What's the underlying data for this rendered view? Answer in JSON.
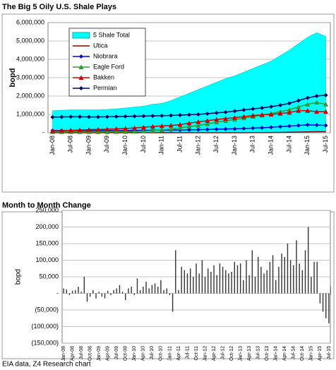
{
  "chart_data": [
    {
      "type": "line",
      "title": "The Big 5 Oily U.S. Shale Plays",
      "y_label": "bopd",
      "categories": [
        "Jan-08",
        null,
        "Jul-08",
        null,
        "Jan-09",
        null,
        "Jul-09",
        null,
        "Jan-10",
        null,
        "Jul-10",
        null,
        "Jan-11",
        null,
        "Jul-11",
        null,
        "Jan-12",
        null,
        "Jul-12",
        null,
        "Jan-13",
        null,
        "Jul-13",
        null,
        "Jan-14",
        null,
        "Jul-14",
        null,
        "Jan-15",
        null,
        "Jul-15"
      ],
      "ylim": [
        0,
        6000000
      ],
      "yticks": [
        {
          "value": 0,
          "label": "-"
        },
        {
          "value": 1000000,
          "label": "1,000,000"
        },
        {
          "value": 2000000,
          "label": "2,000,000"
        },
        {
          "value": 3000000,
          "label": "3,000,000"
        },
        {
          "value": 4000000,
          "label": "4,000,000"
        },
        {
          "value": 5000000,
          "label": "5,000,000"
        },
        {
          "value": 6000000,
          "label": "6,000,000"
        }
      ],
      "grid": true,
      "legend": "top-left",
      "series": [
        {
          "name": "5 Shale Total",
          "color": "#00ffff",
          "style": "area",
          "values": [
            1200000,
            1220000,
            1250000,
            1250000,
            1250000,
            1250000,
            1270000,
            1300000,
            1350000,
            1400000,
            1450000,
            1550000,
            1600000,
            1750000,
            1950000,
            2150000,
            2350000,
            2550000,
            2750000,
            2950000,
            3100000,
            3300000,
            3500000,
            3700000,
            3900000,
            4200000,
            4500000,
            4850000,
            5200000,
            5450000,
            5250000
          ]
        },
        {
          "name": "Utica",
          "color": "#8b0000",
          "style": "line",
          "values": [
            5000,
            5000,
            5000,
            5000,
            5000,
            5000,
            5000,
            5000,
            5000,
            5000,
            5000,
            5000,
            5000,
            5000,
            5000,
            5000,
            5000,
            5000,
            5000,
            5000,
            5000,
            5000,
            10000,
            10000,
            15000,
            20000,
            30000,
            40000,
            50000,
            60000,
            60000
          ]
        },
        {
          "name": "Niobrara",
          "color": "#0000cc",
          "style": "diamond",
          "values": [
            120000,
            120000,
            120000,
            120000,
            120000,
            120000,
            120000,
            120000,
            120000,
            125000,
            130000,
            135000,
            140000,
            145000,
            150000,
            160000,
            170000,
            180000,
            190000,
            200000,
            210000,
            230000,
            250000,
            270000,
            300000,
            330000,
            360000,
            400000,
            430000,
            420000,
            400000
          ]
        },
        {
          "name": "Eagle Ford",
          "color": "#339933",
          "style": "triangle",
          "values": [
            50000,
            50000,
            50000,
            50000,
            50000,
            50000,
            50000,
            55000,
            60000,
            70000,
            90000,
            120000,
            150000,
            200000,
            260000,
            330000,
            400000,
            480000,
            570000,
            650000,
            720000,
            800000,
            880000,
            950000,
            1050000,
            1150000,
            1250000,
            1400000,
            1550000,
            1650000,
            1550000
          ]
        },
        {
          "name": "Bakken",
          "color": "#cc0000",
          "style": "triangle",
          "values": [
            100000,
            110000,
            130000,
            150000,
            170000,
            180000,
            190000,
            210000,
            230000,
            260000,
            300000,
            340000,
            370000,
            400000,
            440000,
            520000,
            590000,
            660000,
            720000,
            770000,
            820000,
            880000,
            940000,
            980000,
            1000000,
            1050000,
            1100000,
            1200000,
            1200000,
            1150000,
            1150000
          ]
        },
        {
          "name": "Permian",
          "color": "#000066",
          "style": "diamond",
          "values": [
            850000,
            860000,
            870000,
            870000,
            860000,
            860000,
            870000,
            880000,
            890000,
            900000,
            910000,
            920000,
            930000,
            940000,
            960000,
            980000,
            1000000,
            1040000,
            1080000,
            1120000,
            1180000,
            1240000,
            1300000,
            1350000,
            1420000,
            1500000,
            1600000,
            1750000,
            1900000,
            2000000,
            2050000
          ]
        }
      ]
    },
    {
      "type": "bar",
      "title": "Month to Month Change",
      "y_label": "bopd",
      "color": "#333333",
      "categories": [
        "Jan-08",
        null,
        null,
        "Apr-08",
        null,
        null,
        "Jul-08",
        null,
        null,
        "Oct-08",
        null,
        null,
        "Jan-09",
        null,
        null,
        "Apr-09",
        null,
        null,
        "Jul-09",
        null,
        null,
        "Oct-09",
        null,
        null,
        "Jan-10",
        null,
        null,
        "Apr-10",
        null,
        null,
        "Jul-10",
        null,
        null,
        "Oct-10",
        null,
        null,
        "Jan-11",
        null,
        null,
        "Apr-11",
        null,
        null,
        "Jul-11",
        null,
        null,
        "Oct-11",
        null,
        null,
        "Jan-12",
        null,
        null,
        "Apr-12",
        null,
        null,
        "Jul-12",
        null,
        null,
        "Oct-12",
        null,
        null,
        "Jan-13",
        null,
        null,
        "Apr-13",
        null,
        null,
        "Jul-13",
        null,
        null,
        "Oct-13",
        null,
        null,
        "Jan-14",
        null,
        null,
        "Apr-14",
        null,
        null,
        "Jul-14",
        null,
        null,
        "Oct-14",
        null,
        null,
        "Jan-15",
        null,
        null,
        "Apr-15",
        null,
        null,
        "Jul-15"
      ],
      "values": [
        15000,
        12000,
        -5000,
        8000,
        10000,
        20000,
        5000,
        50000,
        -25000,
        -10000,
        10000,
        -15000,
        5000,
        -10000,
        -15000,
        8000,
        -5000,
        10000,
        15000,
        25000,
        5000,
        -20000,
        15000,
        20000,
        -5000,
        45000,
        10000,
        20000,
        35000,
        15000,
        25000,
        30000,
        20000,
        40000,
        10000,
        15000,
        -5000,
        -55000,
        130000,
        10000,
        80000,
        70000,
        60000,
        75000,
        50000,
        90000,
        60000,
        100000,
        50000,
        75000,
        65000,
        85000,
        55000,
        90000,
        80000,
        70000,
        60000,
        65000,
        95000,
        85000,
        90000,
        40000,
        100000,
        55000,
        130000,
        50000,
        110000,
        80000,
        60000,
        70000,
        95000,
        115000,
        40000,
        80000,
        120000,
        110000,
        150000,
        100000,
        85000,
        160000,
        90000,
        70000,
        130000,
        200000,
        50000,
        95000,
        95000,
        -30000,
        -55000,
        -75000,
        -90000
      ],
      "ylim": [
        -150000,
        250000
      ],
      "yticks": [
        {
          "value": -150000,
          "label": "(150,000)"
        },
        {
          "value": -100000,
          "label": "(100,000)"
        },
        {
          "value": -50000,
          "label": "(50,000)"
        },
        {
          "value": 0,
          "label": "-"
        },
        {
          "value": 50000,
          "label": "50,000"
        },
        {
          "value": 100000,
          "label": "100,000"
        },
        {
          "value": 150000,
          "label": "150,000"
        },
        {
          "value": 200000,
          "label": "200,000"
        },
        {
          "value": 250000,
          "label": "250,000"
        }
      ],
      "grid": true
    }
  ],
  "footer": "EIA data, Z4 Research chart"
}
